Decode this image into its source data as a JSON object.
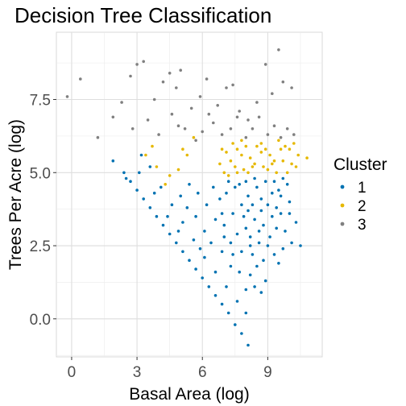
{
  "chart_data": {
    "type": "scatter",
    "title": "Decision Tree Classification",
    "xlabel": "Basal Area (log)",
    "ylabel": "Trees Per Acre (log)",
    "xlim": [
      -0.7,
      11.5
    ],
    "ylim": [
      -1.3,
      9.8
    ],
    "x_ticks": [
      0,
      3,
      6,
      9
    ],
    "x_tick_labels": [
      "0",
      "3",
      "6",
      "9"
    ],
    "y_ticks": [
      0,
      2.5,
      5,
      7.5
    ],
    "y_tick_labels": [
      "0.0",
      "2.5",
      "5.0",
      "7.5"
    ],
    "grid": true,
    "legend": {
      "title": "Cluster",
      "position": "right",
      "entries": [
        {
          "label": "1",
          "color": "#0072B2"
        },
        {
          "label": "2",
          "color": "#E6B800"
        },
        {
          "label": "3",
          "color": "#808080"
        }
      ]
    },
    "series": [
      {
        "name": "1",
        "color": "#0072B2",
        "points": [
          [
            8.1,
            -0.9
          ],
          [
            7.8,
            -0.5
          ],
          [
            7.5,
            -0.2
          ],
          [
            7.2,
            0.2
          ],
          [
            6.9,
            0.5
          ],
          [
            6.6,
            0.8
          ],
          [
            6.3,
            1.1
          ],
          [
            6.0,
            1.4
          ],
          [
            5.7,
            1.7
          ],
          [
            5.4,
            2.0
          ],
          [
            5.1,
            2.3
          ],
          [
            4.8,
            2.6
          ],
          [
            4.5,
            2.9
          ],
          [
            4.2,
            3.2
          ],
          [
            3.9,
            3.5
          ],
          [
            3.6,
            3.8
          ],
          [
            3.3,
            4.1
          ],
          [
            3.0,
            4.4
          ],
          [
            2.7,
            4.7
          ],
          [
            2.4,
            5.0
          ],
          [
            1.9,
            5.4
          ],
          [
            2.5,
            4.8
          ],
          [
            3.2,
            5.6
          ],
          [
            3.6,
            5.2
          ],
          [
            4.1,
            4.5
          ],
          [
            4.6,
            3.9
          ],
          [
            5.1,
            3.3
          ],
          [
            5.6,
            2.7
          ],
          [
            6.1,
            2.1
          ],
          [
            6.6,
            1.6
          ],
          [
            7.1,
            1.1
          ],
          [
            7.6,
            0.6
          ],
          [
            8.0,
            0.2
          ],
          [
            8.0,
            1.0
          ],
          [
            7.7,
            1.6
          ],
          [
            7.4,
            2.2
          ],
          [
            7.0,
            2.8
          ],
          [
            6.6,
            3.4
          ],
          [
            6.2,
            3.9
          ],
          [
            5.8,
            4.3
          ],
          [
            5.4,
            4.6
          ],
          [
            5.0,
            4.2
          ],
          [
            4.9,
            3.0
          ],
          [
            5.7,
            3.5
          ],
          [
            6.4,
            2.6
          ],
          [
            7.3,
            1.8
          ],
          [
            8.2,
            1.5
          ],
          [
            8.3,
            2.2
          ],
          [
            8.8,
            2.0
          ],
          [
            9.3,
            2.2
          ],
          [
            10.1,
            2.6
          ],
          [
            10.5,
            2.5
          ],
          [
            9.8,
            3.0
          ],
          [
            10.3,
            3.3
          ],
          [
            9.6,
            3.6
          ],
          [
            10.0,
            4.0
          ],
          [
            9.5,
            4.4
          ],
          [
            9.9,
            4.6
          ],
          [
            8.9,
            4.7
          ],
          [
            8.5,
            4.5
          ],
          [
            8.1,
            4.2
          ],
          [
            7.8,
            3.9
          ],
          [
            7.4,
            3.6
          ],
          [
            7.1,
            4.3
          ],
          [
            7.0,
            3.2
          ],
          [
            7.6,
            2.9
          ],
          [
            8.0,
            3.1
          ],
          [
            8.4,
            3.4
          ],
          [
            8.7,
            3.7
          ],
          [
            9.0,
            3.9
          ],
          [
            9.2,
            3.5
          ],
          [
            9.4,
            3.1
          ],
          [
            9.1,
            2.8
          ],
          [
            8.6,
            2.6
          ],
          [
            8.2,
            2.8
          ],
          [
            7.9,
            3.5
          ],
          [
            8.3,
            3.9
          ],
          [
            8.7,
            4.1
          ],
          [
            9.2,
            4.3
          ],
          [
            9.6,
            4.2
          ],
          [
            8.8,
            3.2
          ],
          [
            9.0,
            2.5
          ],
          [
            8.5,
            1.8
          ],
          [
            8.9,
            1.3
          ],
          [
            9.5,
            1.9
          ],
          [
            9.7,
            2.4
          ],
          [
            7.5,
            4.5
          ],
          [
            7.2,
            4.7
          ],
          [
            6.8,
            4.1
          ],
          [
            6.5,
            4.5
          ],
          [
            6.9,
            3.6
          ],
          [
            7.7,
            4.6
          ],
          [
            8.0,
            4.7
          ],
          [
            8.4,
            4.8
          ],
          [
            9.3,
            4.7
          ],
          [
            9.7,
            4.8
          ],
          [
            8.6,
            3.0
          ],
          [
            8.1,
            3.7
          ],
          [
            9.4,
            3.8
          ],
          [
            10.0,
            3.6
          ],
          [
            8.4,
            1.1
          ],
          [
            8.7,
            0.9
          ],
          [
            5.3,
            3.8
          ],
          [
            4.4,
            3.5
          ],
          [
            3.8,
            4.3
          ],
          [
            3.1,
            5.0
          ],
          [
            6.1,
            3.0
          ],
          [
            5.9,
            2.4
          ],
          [
            6.9,
            2.3
          ],
          [
            7.3,
            2.6
          ],
          [
            7.8,
            2.3
          ],
          [
            8.2,
            2.5
          ]
        ]
      },
      {
        "name": "2",
        "color": "#E6B800",
        "points": [
          [
            3.4,
            5.6
          ],
          [
            3.9,
            5.2
          ],
          [
            4.9,
            5.1
          ],
          [
            5.3,
            5.6
          ],
          [
            5.6,
            6.2
          ],
          [
            4.3,
            4.6
          ],
          [
            3.7,
            5.9
          ],
          [
            4.5,
            4.9
          ],
          [
            7.0,
            5.0
          ],
          [
            7.3,
            5.4
          ],
          [
            7.6,
            5.8
          ],
          [
            7.9,
            5.1
          ],
          [
            8.2,
            5.5
          ],
          [
            8.5,
            5.9
          ],
          [
            8.8,
            5.2
          ],
          [
            9.1,
            5.6
          ],
          [
            9.4,
            5.0
          ],
          [
            9.7,
            5.4
          ],
          [
            10.0,
            5.8
          ],
          [
            10.3,
            5.2
          ],
          [
            10.8,
            5.5
          ],
          [
            10.2,
            6.0
          ],
          [
            9.5,
            6.1
          ],
          [
            8.7,
            6.0
          ],
          [
            7.8,
            6.1
          ],
          [
            7.1,
            5.7
          ],
          [
            7.2,
            4.9
          ],
          [
            7.5,
            5.2
          ],
          [
            7.8,
            5.6
          ],
          [
            8.1,
            5.0
          ],
          [
            8.4,
            5.3
          ],
          [
            8.7,
            5.7
          ],
          [
            9.0,
            5.1
          ],
          [
            9.3,
            5.4
          ],
          [
            9.6,
            5.8
          ],
          [
            9.9,
            5.0
          ],
          [
            10.1,
            5.3
          ],
          [
            7.4,
            6.0
          ],
          [
            8.0,
            5.9
          ],
          [
            8.9,
            5.8
          ],
          [
            9.8,
            5.9
          ],
          [
            7.6,
            5.0
          ],
          [
            8.3,
            5.2
          ],
          [
            9.2,
            5.3
          ],
          [
            10.4,
            5.6
          ],
          [
            6.8,
            5.3
          ],
          [
            6.9,
            5.8
          ],
          [
            5.1,
            5.8
          ]
        ]
      },
      {
        "name": "3",
        "color": "#808080",
        "points": [
          [
            -0.2,
            7.6
          ],
          [
            0.4,
            8.2
          ],
          [
            1.2,
            6.2
          ],
          [
            1.9,
            6.9
          ],
          [
            2.3,
            7.4
          ],
          [
            2.7,
            8.3
          ],
          [
            3.0,
            8.7
          ],
          [
            3.3,
            8.8
          ],
          [
            3.8,
            7.5
          ],
          [
            4.2,
            8.1
          ],
          [
            4.5,
            8.4
          ],
          [
            4.8,
            7.9
          ],
          [
            5.0,
            8.5
          ],
          [
            2.8,
            6.5
          ],
          [
            3.5,
            6.8
          ],
          [
            4.0,
            6.3
          ],
          [
            4.6,
            7.0
          ],
          [
            5.2,
            6.5
          ],
          [
            5.5,
            7.2
          ],
          [
            5.9,
            7.6
          ],
          [
            6.2,
            8.2
          ],
          [
            6.7,
            7.3
          ],
          [
            7.1,
            7.9
          ],
          [
            7.4,
            8.0
          ],
          [
            7.7,
            7.1
          ],
          [
            8.1,
            6.8
          ],
          [
            8.5,
            7.4
          ],
          [
            8.9,
            8.7
          ],
          [
            9.2,
            7.7
          ],
          [
            9.5,
            9.2
          ],
          [
            9.7,
            8.1
          ],
          [
            10.1,
            7.9
          ],
          [
            6.0,
            6.4
          ],
          [
            6.5,
            6.7
          ],
          [
            6.9,
            6.3
          ],
          [
            7.3,
            6.5
          ],
          [
            7.6,
            6.9
          ],
          [
            8.0,
            6.2
          ],
          [
            8.3,
            6.5
          ],
          [
            8.6,
            6.9
          ],
          [
            9.0,
            6.3
          ],
          [
            9.3,
            6.6
          ],
          [
            9.6,
            6.2
          ],
          [
            9.9,
            6.5
          ],
          [
            10.2,
            6.3
          ],
          [
            5.7,
            6.1
          ],
          [
            4.9,
            6.6
          ],
          [
            6.3,
            7.0
          ]
        ]
      }
    ]
  }
}
